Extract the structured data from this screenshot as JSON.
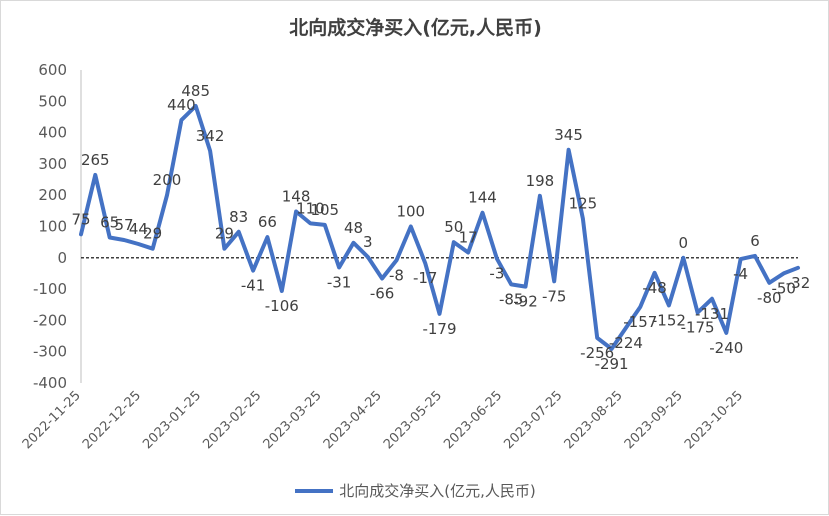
{
  "chart_data": {
    "type": "line",
    "title": "北向成交净买入(亿元,人民币)",
    "xlabel": "",
    "ylabel": "",
    "ylim": [
      -400,
      600
    ],
    "yticks": [
      600,
      500,
      400,
      300,
      200,
      100,
      0,
      -100,
      -200,
      -300,
      -400
    ],
    "xtick_labels": [
      "2022-11-25",
      "2022-12-25",
      "2023-01-25",
      "2023-02-25",
      "2023-03-25",
      "2023-04-25",
      "2023-05-25",
      "2023-06-25",
      "2023-07-25",
      "2023-08-25",
      "2023-09-25",
      "2023-10-25"
    ],
    "zero_line": "dashed",
    "grid": false,
    "legend_position": "bottom",
    "series": [
      {
        "name": "北向成交净买入(亿元,人民币)",
        "color": "#4472c4",
        "values": [
          75,
          265,
          65,
          57,
          44,
          29,
          200,
          440,
          485,
          342,
          29,
          83,
          -41,
          66,
          -106,
          148,
          110,
          105,
          -31,
          48,
          3,
          -66,
          -8,
          100,
          -17,
          -179,
          50,
          17,
          144,
          -3,
          -85,
          -92,
          198,
          -75,
          345,
          125,
          -256,
          -291,
          -224,
          -157,
          -48,
          -152,
          0,
          -175,
          -131,
          -240,
          -4,
          6,
          -80,
          -50,
          -32
        ],
        "labels": [
          "75",
          "265",
          "65",
          "57",
          "44",
          "29",
          "200",
          "440",
          "485",
          "342",
          "29",
          "83",
          "-41",
          "66",
          "-106",
          "148",
          "110",
          "105",
          "-31",
          "48",
          "3",
          "-66",
          "-8",
          "100",
          "-17",
          "-179",
          "50",
          "17",
          "144",
          "-3",
          "-85",
          "-92",
          "198",
          "-75",
          "345",
          "125",
          "-256",
          "-291",
          "-224",
          "-157",
          "-48",
          "-152",
          "0",
          "-175",
          "-131",
          "-240",
          "-4",
          "6",
          "-80",
          "-50",
          "-32"
        ]
      }
    ]
  }
}
